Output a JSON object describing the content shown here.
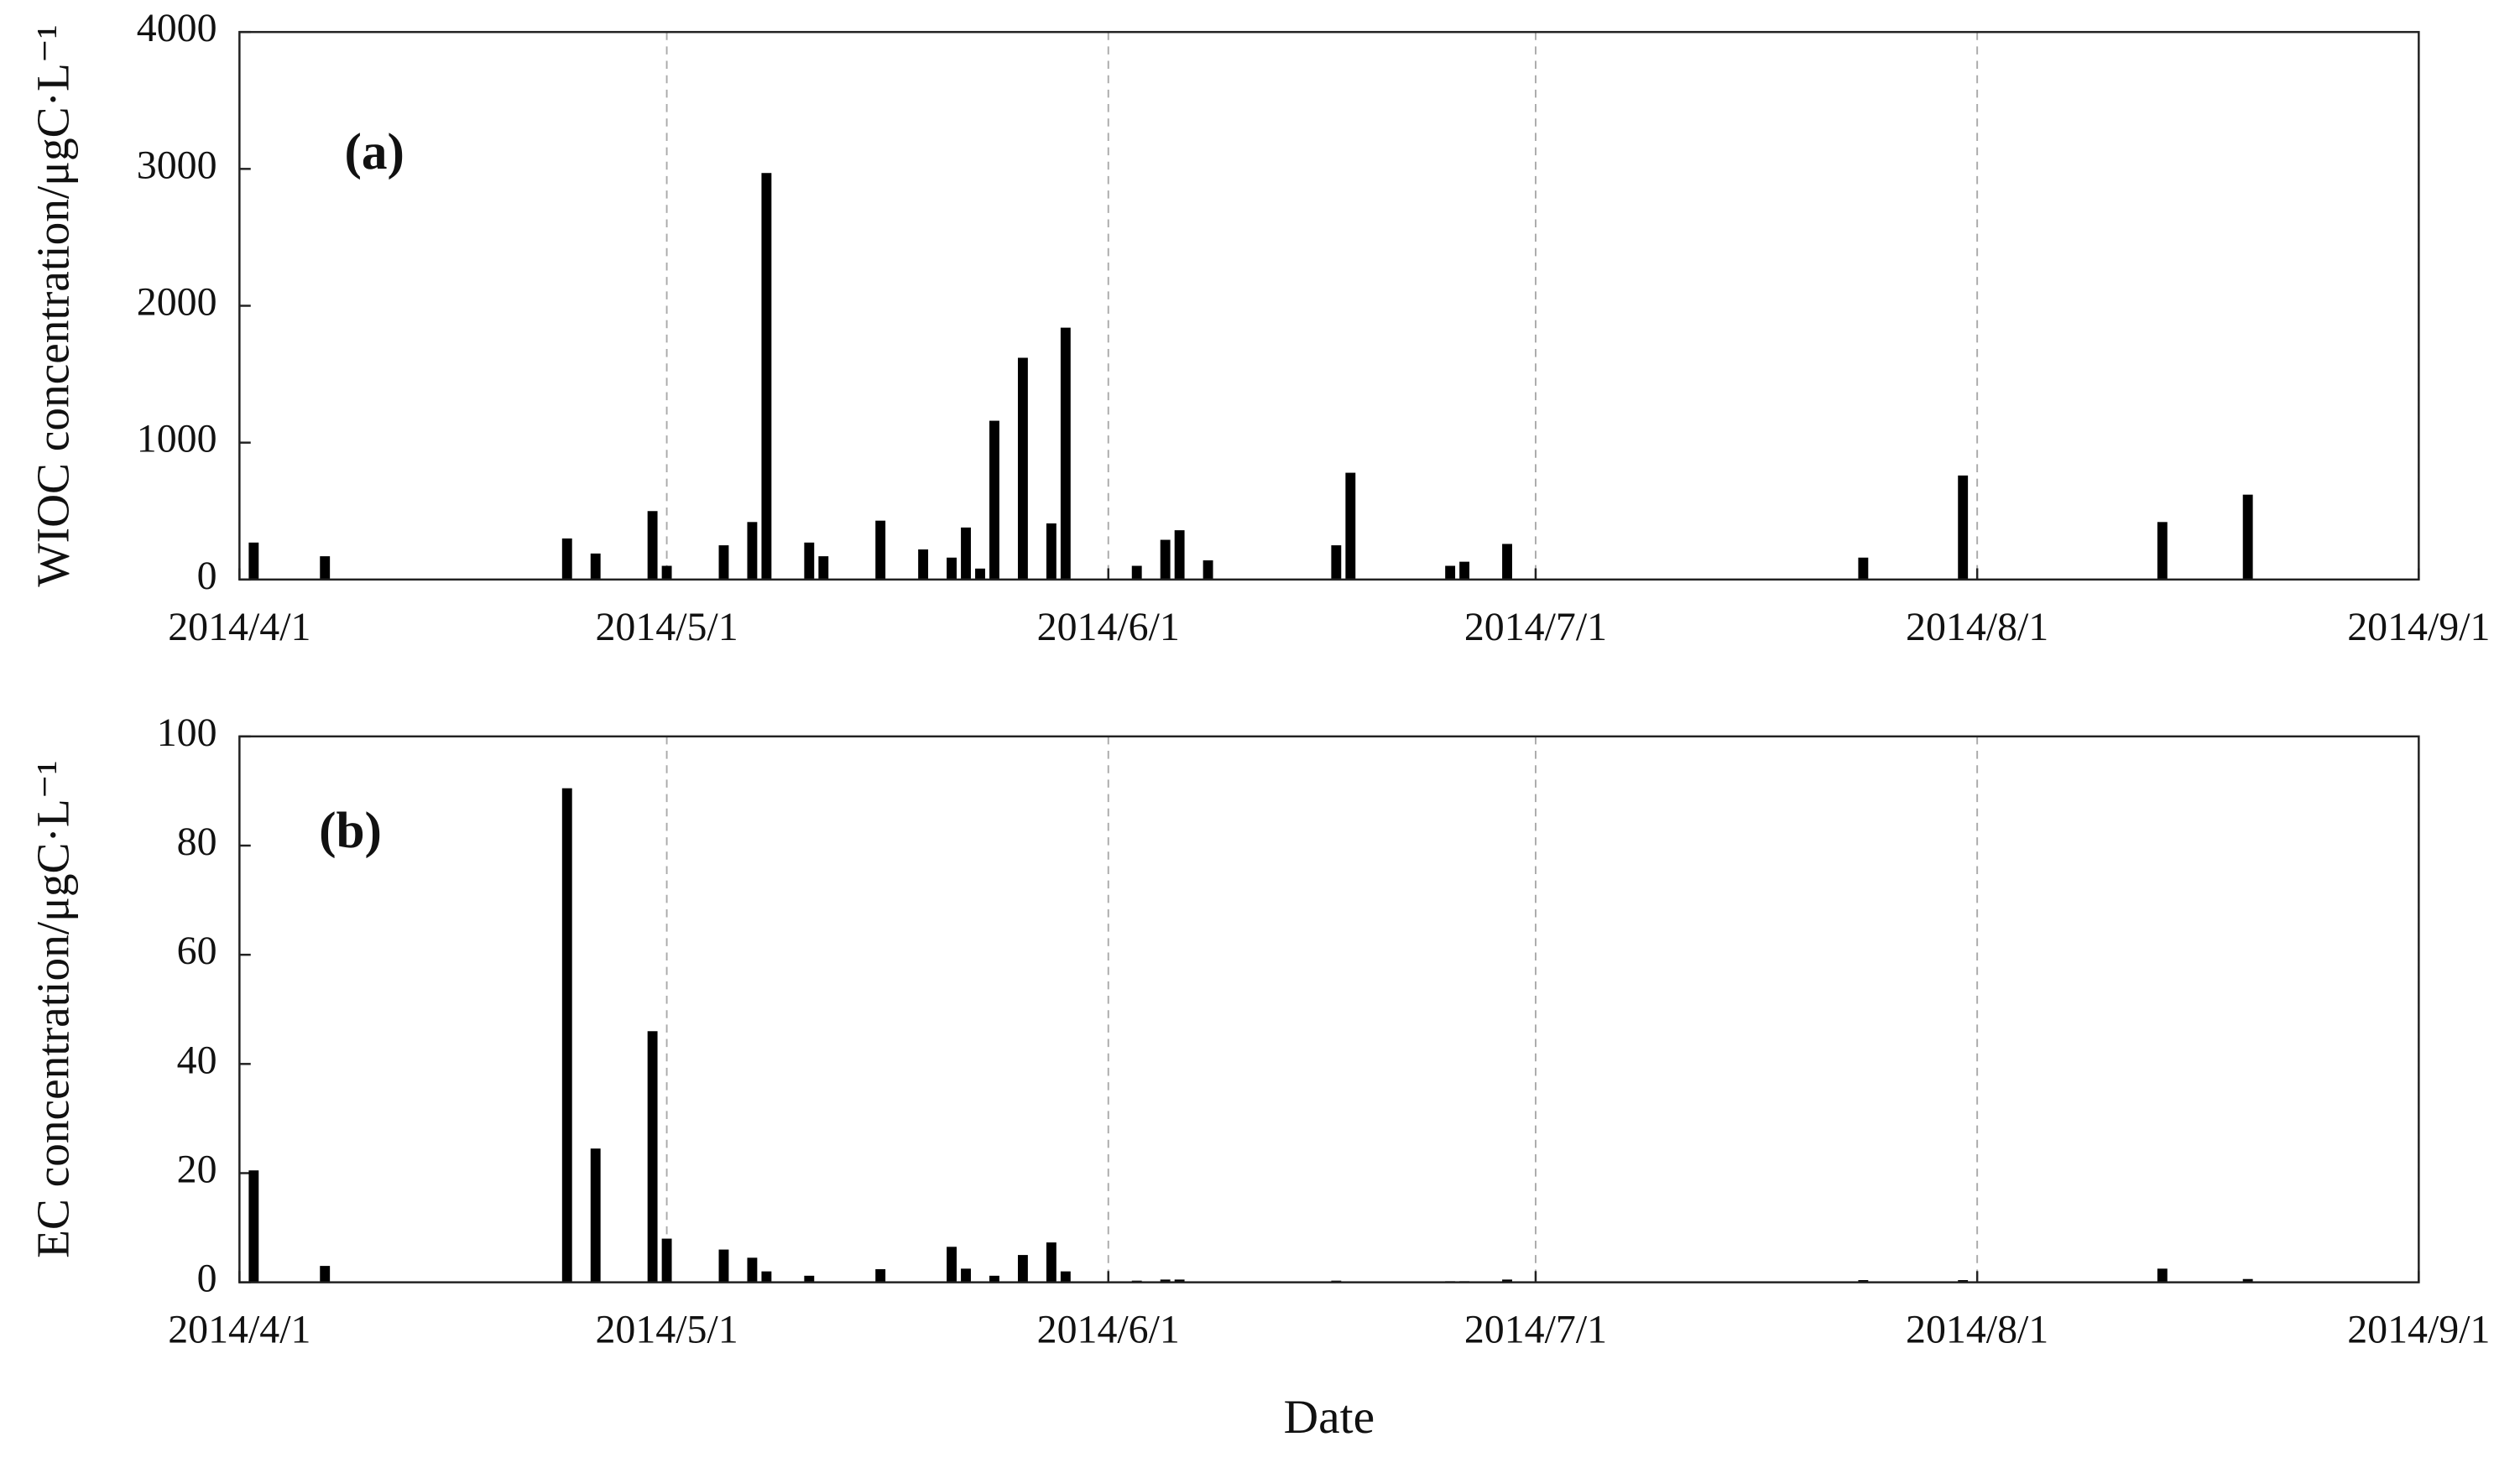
{
  "chart_data": [
    {
      "type": "bar",
      "annotation": "(a)",
      "ylabel": "WIOC concentration/μgC·L⁻¹",
      "color": "#000000",
      "grid": "x",
      "x": [
        "2014/4/2",
        "2014/4/7",
        "2014/4/24",
        "2014/4/26",
        "2014/4/30",
        "2014/5/1",
        "2014/5/5",
        "2014/5/7",
        "2014/5/8",
        "2014/5/11",
        "2014/5/12",
        "2014/5/16",
        "2014/5/19",
        "2014/5/21",
        "2014/5/22",
        "2014/5/23",
        "2014/5/24",
        "2014/5/26",
        "2014/5/28",
        "2014/5/29",
        "2014/6/3",
        "2014/6/5",
        "2014/6/6",
        "2014/6/8",
        "2014/6/17",
        "2014/6/18",
        "2014/6/25",
        "2014/6/26",
        "2014/6/29",
        "2014/7/24",
        "2014/7/31",
        "2014/8/14",
        "2014/8/20"
      ],
      "values": [
        270,
        170,
        300,
        190,
        500,
        100,
        250,
        420,
        2970,
        270,
        170,
        430,
        220,
        160,
        380,
        80,
        1160,
        1620,
        410,
        1840,
        100,
        290,
        360,
        140,
        250,
        780,
        100,
        130,
        260,
        160,
        760,
        420,
        620
      ],
      "xlim": [
        "2014/4/1",
        "2014/9/1"
      ],
      "xticks": [
        "2014/4/1",
        "2014/5/1",
        "2014/6/1",
        "2014/7/1",
        "2014/8/1",
        "2014/9/1"
      ],
      "ylim": [
        0,
        4000
      ],
      "yticks": [
        0,
        1000,
        2000,
        3000,
        4000
      ]
    },
    {
      "type": "bar",
      "annotation": "(b)",
      "ylabel": "EC concentration/μgC·L⁻¹",
      "xlabel": "Date",
      "color": "#000000",
      "grid": "x",
      "x": [
        "2014/4/2",
        "2014/4/7",
        "2014/4/24",
        "2014/4/26",
        "2014/4/30",
        "2014/5/1",
        "2014/5/5",
        "2014/5/7",
        "2014/5/8",
        "2014/5/11",
        "2014/5/16",
        "2014/5/21",
        "2014/5/22",
        "2014/5/24",
        "2014/5/26",
        "2014/5/28",
        "2014/5/29",
        "2014/6/3",
        "2014/6/5",
        "2014/6/6",
        "2014/6/17",
        "2014/6/25",
        "2014/6/26",
        "2014/6/29",
        "2014/7/24",
        "2014/7/31",
        "2014/8/14",
        "2014/8/20"
      ],
      "values": [
        20.5,
        3,
        90.5,
        24.5,
        46,
        8,
        6,
        4.5,
        2,
        1.2,
        2.4,
        6.5,
        2.5,
        1.2,
        5,
        7.3,
        2,
        0.3,
        0.5,
        0.5,
        0.3,
        0.2,
        0.2,
        0.5,
        0.4,
        0.4,
        2.5,
        0.6
      ],
      "xlim": [
        "2014/4/1",
        "2014/9/1"
      ],
      "xticks": [
        "2014/4/1",
        "2014/5/1",
        "2014/6/1",
        "2014/7/1",
        "2014/8/1",
        "2014/9/1"
      ],
      "ylim": [
        0,
        100
      ],
      "yticks": [
        0,
        20,
        40,
        60,
        80,
        100
      ]
    }
  ]
}
